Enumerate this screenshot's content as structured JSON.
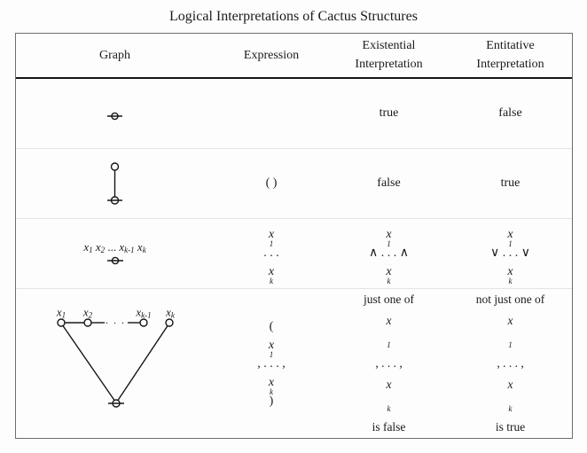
{
  "title": "Logical Interpretations of Cactus Structures",
  "header": {
    "graph": "Graph",
    "expression": "Expression",
    "existential": [
      "Existential",
      "Interpretation"
    ],
    "entitative": [
      "Entitative",
      "Interpretation"
    ]
  },
  "rows": [
    {
      "expression": "",
      "existential": "true",
      "entitative": "false"
    },
    {
      "expression": "( )",
      "existential": "false",
      "entitative": "true"
    },
    {
      "graph_label": [
        [
          "i",
          "x"
        ],
        [
          "s",
          "1"
        ],
        [
          "r",
          " "
        ],
        [
          "i",
          "x"
        ],
        [
          "s",
          "2"
        ],
        [
          "r",
          " ... "
        ],
        [
          "i",
          "x"
        ],
        [
          "s",
          "k-1"
        ],
        [
          "r",
          " "
        ],
        [
          "i",
          "x"
        ],
        [
          "s",
          "k"
        ]
      ],
      "expression": [
        [
          "i",
          "x"
        ],
        [
          "s",
          "1"
        ],
        [
          "r",
          " . . . "
        ],
        [
          "i",
          "x"
        ],
        [
          "s",
          "k"
        ]
      ],
      "existential": [
        [
          "i",
          "x"
        ],
        [
          "s",
          "1"
        ],
        [
          "r",
          " ∧ . . . ∧ "
        ],
        [
          "i",
          "x"
        ],
        [
          "s",
          "k"
        ]
      ],
      "entitative": [
        [
          "i",
          "x"
        ],
        [
          "s",
          "1"
        ],
        [
          "r",
          " ∨ . . . ∨ "
        ],
        [
          "i",
          "x"
        ],
        [
          "s",
          "k"
        ]
      ]
    },
    {
      "graph_labels": {
        "x1": [
          [
            "i",
            "x"
          ],
          [
            "s",
            "1"
          ]
        ],
        "x2": [
          [
            "i",
            "x"
          ],
          [
            "s",
            "2"
          ]
        ],
        "dots": "· · ·",
        "xk1": [
          [
            "i",
            "x"
          ],
          [
            "s",
            "k-1"
          ]
        ],
        "xk": [
          [
            "i",
            "x"
          ],
          [
            "s",
            "k"
          ]
        ]
      },
      "expression": [
        [
          "r",
          "("
        ],
        [
          "i",
          "x"
        ],
        [
          "s",
          "1"
        ],
        [
          "r",
          ", . . . , "
        ],
        [
          "i",
          "x"
        ],
        [
          "s",
          "k"
        ],
        [
          "r",
          ")"
        ]
      ],
      "existential": {
        "line1": "just one of",
        "line2": [
          [
            "i",
            "x"
          ],
          [
            "s",
            "1"
          ],
          [
            "r",
            ", . . . , "
          ],
          [
            "i",
            "x"
          ],
          [
            "s",
            "k"
          ]
        ],
        "line3": "is false"
      },
      "entitative": {
        "line1": "not just one of",
        "line2": [
          [
            "i",
            "x"
          ],
          [
            "s",
            "1"
          ],
          [
            "r",
            ", . . . , "
          ],
          [
            "i",
            "x"
          ],
          [
            "s",
            "k"
          ]
        ],
        "line3": "is true"
      }
    }
  ],
  "colors": {
    "ink": "#1a1a1a",
    "table_border": "#6e6e6e",
    "header_rule": "#161616",
    "row_separator": "#e4e4e4",
    "background": "#fdfdfd"
  }
}
